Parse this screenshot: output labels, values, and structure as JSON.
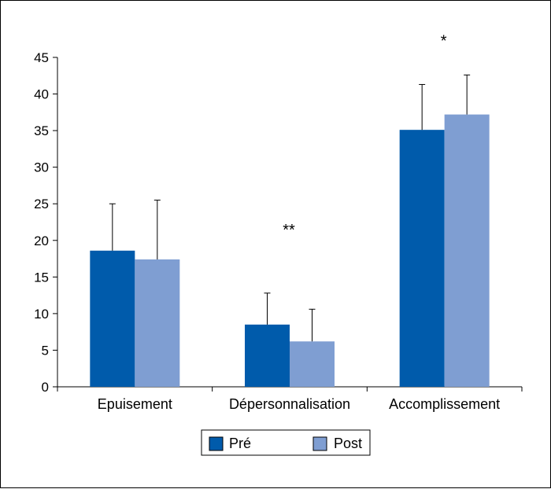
{
  "chart_data": {
    "type": "bar",
    "categories": [
      "Epuisement",
      "Dépersonnalisation",
      "Accomplissement"
    ],
    "series": [
      {
        "name": "Pré",
        "values": [
          18.6,
          8.5,
          35.1
        ],
        "error_upper": [
          25.0,
          12.8,
          41.3
        ],
        "color": "#005bab"
      },
      {
        "name": "Post",
        "values": [
          17.4,
          6.2,
          37.2
        ],
        "error_upper": [
          25.5,
          10.6,
          42.6
        ],
        "color": "#7f9ed2"
      }
    ],
    "ylim": [
      0,
      45
    ],
    "yticks": [
      0,
      5,
      10,
      15,
      20,
      25,
      30,
      35,
      40,
      45
    ],
    "significance": [
      "",
      "**",
      "*"
    ],
    "legend_position": "bottom-center",
    "grid": false
  }
}
